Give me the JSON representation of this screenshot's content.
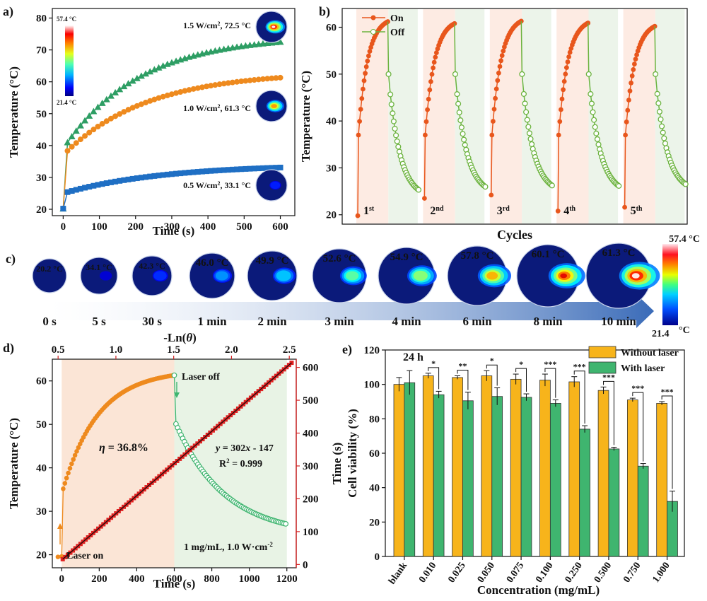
{
  "panels": {
    "a": "a)",
    "b": "b)",
    "c": "c)",
    "d": "d)",
    "e": "e)"
  },
  "colors": {
    "green": "#2e9e64",
    "orange": "#ee8a1e",
    "blue": "#1f6fc4",
    "redorange": "#e8561c",
    "lightgreen": "#6cb33f",
    "red": "#d42020",
    "yellow": "#f7b41b",
    "bargreen": "#3fb56f"
  },
  "chart_data": [
    {
      "id": "a",
      "type": "scatter",
      "xlabel": "Time (s)",
      "ylabel": "Temperature (°C)",
      "xlim": [
        -30,
        640
      ],
      "ylim": [
        18,
        83
      ],
      "xticks": [
        0,
        100,
        200,
        300,
        400,
        500,
        600
      ],
      "yticks": [
        20,
        30,
        40,
        50,
        60,
        70,
        80
      ],
      "colorbar": {
        "max": "57.4 °C",
        "min": "21.4 °C"
      },
      "series": [
        {
          "name": "1.5 W/cm², 72.5 °C",
          "label_pre": "1.5 W/cm",
          "label_post": ", 72.5 °C",
          "T0": 20.2,
          "Tmax": 72.5,
          "jump": 39,
          "k": 210
        },
        {
          "name": "1.0 W/cm², 61.3 °C",
          "label_pre": "1.0 W/cm",
          "label_post": ", 61.3 °C",
          "T0": 20.2,
          "Tmax": 61.3,
          "jump": 37,
          "k": 230
        },
        {
          "name": "0.5 W/cm², 33.1 °C",
          "label_pre": "0.5 W/cm",
          "label_post": ", 33.1 °C",
          "T0": 20.2,
          "Tmax": 33.1,
          "jump": 25,
          "k": 280
        }
      ]
    },
    {
      "id": "b",
      "type": "line",
      "xlabel": "Cycles",
      "ylabel": "Temperature (°C)",
      "ylim": [
        18,
        64
      ],
      "yticks": [
        20,
        30,
        40,
        50,
        60
      ],
      "legend": [
        "On",
        "Off"
      ],
      "cycles": [
        {
          "label": "1",
          "sup": "st",
          "peak": 61.2,
          "end": 23.5,
          "start": 19.8
        },
        {
          "label": "2",
          "sup": "nd",
          "peak": 60.8,
          "end": 24.2,
          "start": 23.5
        },
        {
          "label": "3",
          "sup": "rd",
          "peak": 61.3,
          "end": 24.5,
          "start": 24.2
        },
        {
          "label": "4",
          "sup": "th",
          "peak": 60.9,
          "end": 24.4,
          "start": 20.8
        },
        {
          "label": "5",
          "sup": "th",
          "peak": 60.2,
          "end": 24.8,
          "start": 21.6
        }
      ]
    },
    {
      "id": "c",
      "type": "other",
      "frames": [
        {
          "temp": "20.2 °C",
          "time": "0 s",
          "hot": 0.0
        },
        {
          "temp": "34.1 °C",
          "time": "5 s",
          "hot": 0.2
        },
        {
          "temp": "42.3 °C",
          "time": "30 s",
          "hot": 0.35
        },
        {
          "temp": "46.0 °C",
          "time": "1 min",
          "hot": 0.45
        },
        {
          "temp": "49.9 °C",
          "time": "2 min",
          "hot": 0.55
        },
        {
          "temp": "52.6 °C",
          "time": "3 min",
          "hot": 0.65
        },
        {
          "temp": "54.9 °C",
          "time": "4 min",
          "hot": 0.72
        },
        {
          "temp": "57.8 °C",
          "time": "6 min",
          "hot": 0.82
        },
        {
          "temp": "60.1 °C",
          "time": "8 min",
          "hot": 0.9
        },
        {
          "temp": "61.3 °C",
          "time": "10 min",
          "hot": 1.0
        }
      ],
      "colorbar": {
        "max": "57.4 °C",
        "min_num": "21.4",
        "min_unit": "°C"
      }
    },
    {
      "id": "d",
      "type": "scatter",
      "xlabel": "Time (s)",
      "ylabel": "Temperature (°C)",
      "top_xlabel": "-Ln(θ)",
      "top_xlabel_pre": "-Ln(",
      "top_xlabel_theta": "θ",
      "top_xlabel_post": ")",
      "right_ylabel": "Time (s)",
      "xlim": [
        -50,
        1250
      ],
      "ylim": [
        17,
        65
      ],
      "xticks": [
        0,
        200,
        400,
        600,
        800,
        1000,
        1200
      ],
      "yticks": [
        20,
        30,
        40,
        50,
        60
      ],
      "top_xlim": [
        0.45,
        2.56
      ],
      "top_xticks": [
        0.5,
        1.0,
        1.5,
        2.0,
        2.5
      ],
      "right_ylim": [
        -10,
        625
      ],
      "right_yticks": [
        0,
        100,
        200,
        300,
        400,
        500,
        600
      ],
      "heating": {
        "T0": 19.5,
        "Tmax": 61.3,
        "jump": 34,
        "k": 190
      },
      "cooling": {
        "Tstart": 61.3,
        "Tend": 24.4,
        "k": 260
      },
      "fit": {
        "slope": 302,
        "intercept": -147,
        "xmin": 0.54,
        "xmax": 2.52
      },
      "eq": "y = 302x - 147",
      "eq_y": "y",
      "eq_rest": " = 302",
      "eq_x": "x",
      "eq_tail": " - 147",
      "r2": "R² = 0.999",
      "r2_pre": "R",
      "r2_post": " = 0.999",
      "eta": "η = 36.8%",
      "eta_sym": "η",
      "eta_rest": " = 36.8%",
      "laser_on": "Laser on",
      "laser_off": "Laser off",
      "condition": "1 mg/mL, 1.0 W·cm⁻²",
      "condition_pre": "1 mg/mL, 1.0 W·cm",
      "condition_sup": "-2"
    },
    {
      "id": "e",
      "type": "bar",
      "title": "24 h",
      "xlabel": "Concentration (mg/mL)",
      "ylabel": "Cell viability (%)",
      "ylim": [
        0,
        120
      ],
      "yticks": [
        0,
        20,
        40,
        60,
        80,
        100,
        120
      ],
      "categories": [
        "blank",
        "0.010",
        "0.025",
        "0.050",
        "0.075",
        "0.100",
        "0.250",
        "0.500",
        "0.750",
        "1.000"
      ],
      "series": [
        {
          "name": "Without laser",
          "values": [
            100,
            105,
            104,
            105,
            103,
            102.5,
            101.5,
            96.5,
            91,
            89
          ],
          "err": [
            4,
            1.5,
            1,
            3,
            3,
            3.5,
            3,
            2,
            1,
            1
          ]
        },
        {
          "name": "With laser",
          "values": [
            101,
            94,
            90.5,
            93,
            92.5,
            89,
            74,
            62.5,
            52.5,
            32
          ],
          "err": [
            7,
            2,
            5,
            5,
            2,
            2,
            2,
            1,
            1.5,
            6
          ]
        }
      ],
      "sig": [
        "",
        "*",
        "**",
        "*",
        "*",
        "***",
        "***",
        "***",
        "***",
        "***"
      ]
    }
  ]
}
